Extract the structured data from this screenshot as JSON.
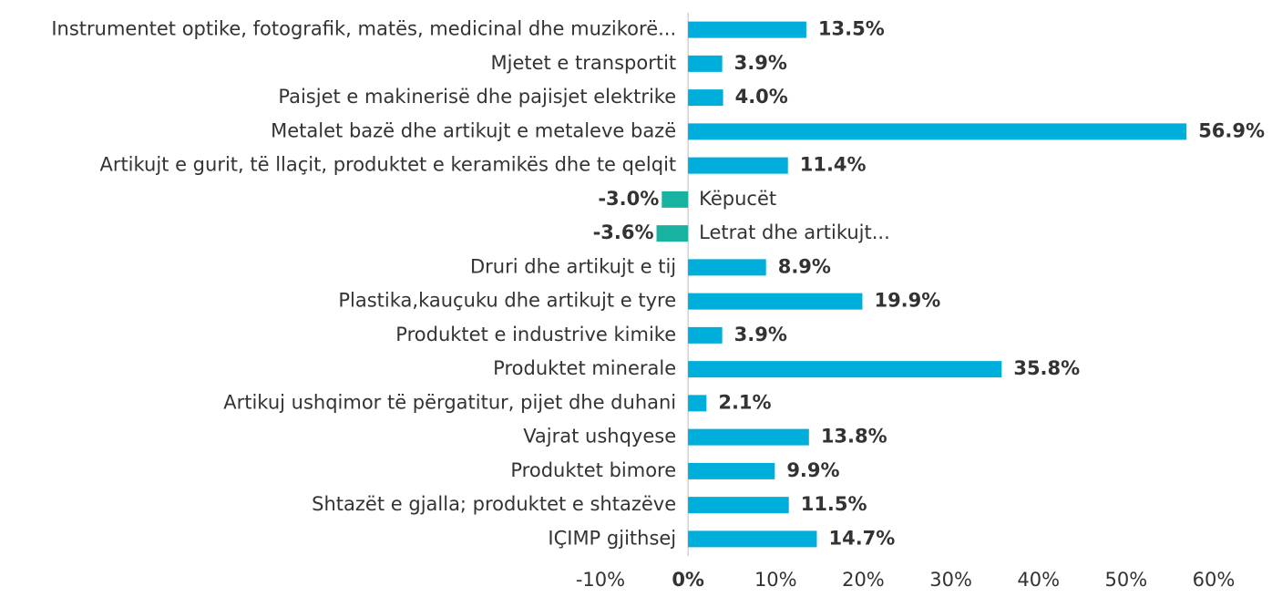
{
  "chart_data": {
    "type": "hbar",
    "categories": [
      "Instrumentet optike, fotografik, matës, medicinal dhe muzikorë...",
      "Mjetet e transportit",
      "Paisjet e makinerisë dhe pajisjet elektrike",
      "Metalet bazë dhe artikujt e metaleve bazë",
      "Artikujt e gurit, të llaçit, produktet e keramikës dhe te qelqit",
      "Këpucët",
      "Letrat dhe artikujt...",
      "Druri dhe artikujt e tij",
      "Plastika,kauçuku dhe artikujt e tyre",
      "Produktet e industrive kimike",
      "Produktet minerale",
      "Artikuj ushqimor të përgatitur, pijet dhe duhani",
      "Vajrat ushqyese",
      "Produktet bimore",
      "Shtazët e gjalla; produktet e shtazëve",
      "IÇIMP gjithsej"
    ],
    "values": [
      13.5,
      3.9,
      4.0,
      56.9,
      11.4,
      -3.0,
      -3.6,
      8.9,
      19.9,
      3.9,
      35.8,
      2.1,
      13.8,
      9.9,
      11.5,
      14.7
    ],
    "value_labels": [
      "13.5%",
      "3.9%",
      "4.0%",
      "56.9%",
      "11.4%",
      "-3.0%",
      "-3.6%",
      "8.9%",
      "19.9%",
      "3.9%",
      "35.8%",
      "2.1%",
      "13.8%",
      "9.9%",
      "11.5%",
      "14.7%"
    ],
    "color": "#00aedb",
    "negative_color": "#17b3a0",
    "xlim": [
      -10,
      60
    ],
    "xticks": [
      {
        "value": -10,
        "label": "-10%"
      },
      {
        "value": 0,
        "label": "0%"
      },
      {
        "value": 10,
        "label": "10%"
      },
      {
        "value": 20,
        "label": "20%"
      },
      {
        "value": 30,
        "label": "30%"
      },
      {
        "value": 40,
        "label": "40%"
      },
      {
        "value": 50,
        "label": "50%"
      },
      {
        "value": 60,
        "label": "60%"
      }
    ]
  }
}
